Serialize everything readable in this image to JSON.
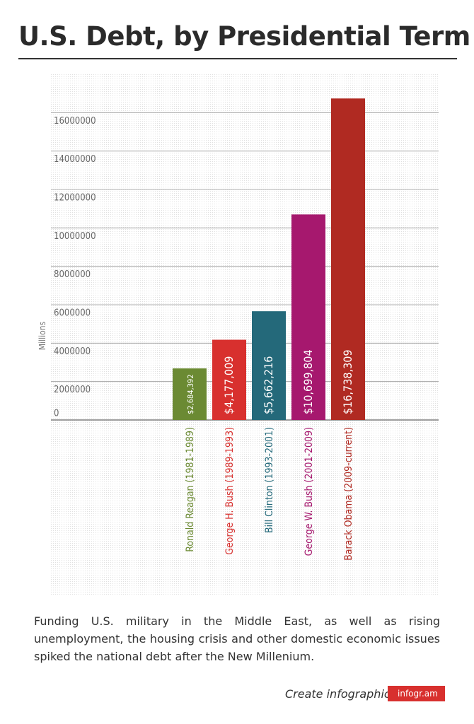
{
  "chart_data": {
    "type": "bar",
    "title": "U.S. Debt, by Presidential Term",
    "y_label": "Millions",
    "categories": [
      null,
      null,
      null,
      "Ronald Reagan (1981-1989)",
      "George H. Bush (1989-1993)",
      "Bill Clinton (1993-2001)",
      "George W. Bush (2001-2009)",
      "Barack Obama (2009-current)"
    ],
    "values": [
      null,
      null,
      null,
      2684392,
      4177009,
      5662216,
      10699804,
      16738309
    ],
    "value_labels": [
      null,
      null,
      null,
      "$2,684,392",
      "$4,177,009",
      "$5,662,216",
      "$10,699,804",
      "$16,738,309"
    ],
    "colors": [
      null,
      null,
      null,
      "#6b8a33",
      "#d8302e",
      "#24697a",
      "#a6186e",
      "#b02a22"
    ],
    "ylim": [
      0,
      18000000
    ],
    "yticks": [
      0,
      2000000,
      4000000,
      6000000,
      8000000,
      10000000,
      12000000,
      14000000,
      16000000
    ],
    "grid": true,
    "note": "Funding U.S. military in the Middle East, as well as rising unemployment, the housing crisis and other domestic economic issues spiked the national debt after the New Millenium."
  },
  "footer": {
    "cta": "Create infographics",
    "brand": "infogr.am"
  }
}
